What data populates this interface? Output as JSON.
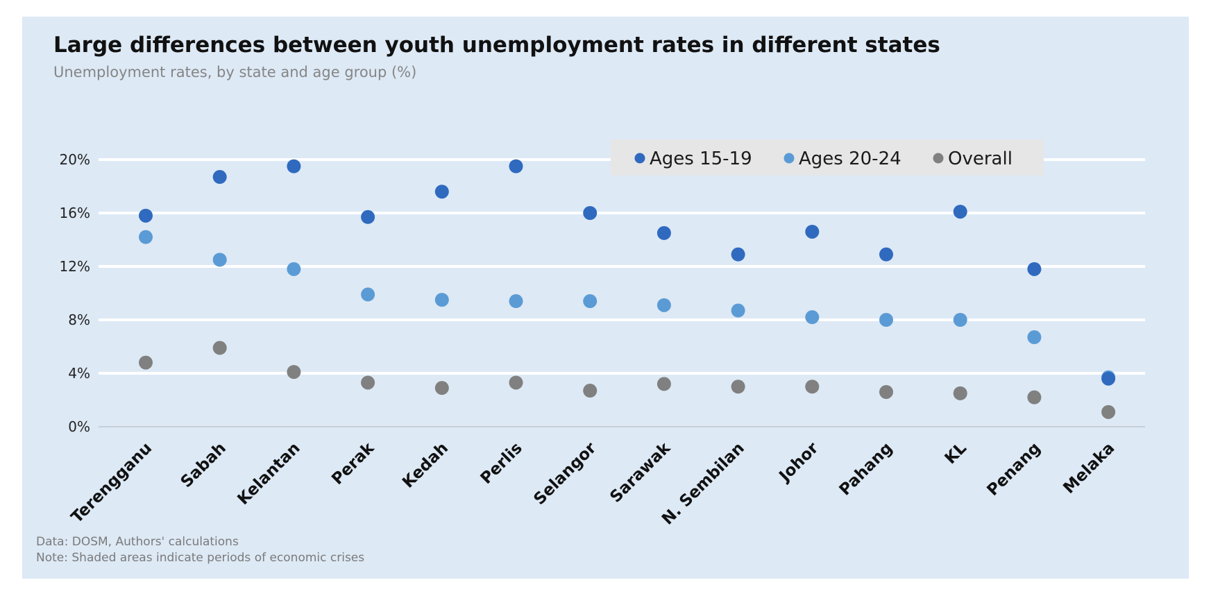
{
  "header": {
    "title": "Large differences between youth unemployment rates in different states",
    "subtitle": "Unemployment rates, by state and age group (%)"
  },
  "footer": {
    "source": "Data: DOSM, Authors' calculations",
    "note": "Note: Shaded areas indicate periods of economic crises"
  },
  "chart_data": {
    "type": "scatter",
    "title": "Large differences between youth unemployment rates in different states",
    "subtitle": "Unemployment rates, by state and age group (%)",
    "categories": [
      "Terengganu",
      "Sabah",
      "Kelantan",
      "Perak",
      "Kedah",
      "Perlis",
      "Selangor",
      "Sarawak",
      "N. Sembilan",
      "Johor",
      "Pahang",
      "KL",
      "Penang",
      "Melaka"
    ],
    "series": [
      {
        "name": "Ages 15-19",
        "color": "#2f6abf",
        "values": [
          15.8,
          18.7,
          19.5,
          15.7,
          17.6,
          19.5,
          16.0,
          14.5,
          12.9,
          14.6,
          12.9,
          16.1,
          11.8,
          3.6
        ]
      },
      {
        "name": "Ages 20-24",
        "color": "#5b9bd5",
        "values": [
          14.2,
          12.5,
          11.8,
          9.9,
          9.5,
          9.4,
          9.4,
          9.1,
          8.7,
          8.2,
          8.0,
          8.0,
          6.7,
          3.7
        ]
      },
      {
        "name": "Overall",
        "color": "#808080",
        "values": [
          4.8,
          5.9,
          4.1,
          3.3,
          2.9,
          3.3,
          2.7,
          3.2,
          3.0,
          3.0,
          2.6,
          2.5,
          2.2,
          1.1
        ]
      }
    ],
    "yticks": [
      "0%",
      "4%",
      "8%",
      "12%",
      "16%",
      "20%"
    ],
    "ytick_values": [
      0,
      4,
      8,
      12,
      16,
      20
    ],
    "ylim": [
      0,
      20
    ],
    "grid": true,
    "legend_position": "top-right"
  }
}
